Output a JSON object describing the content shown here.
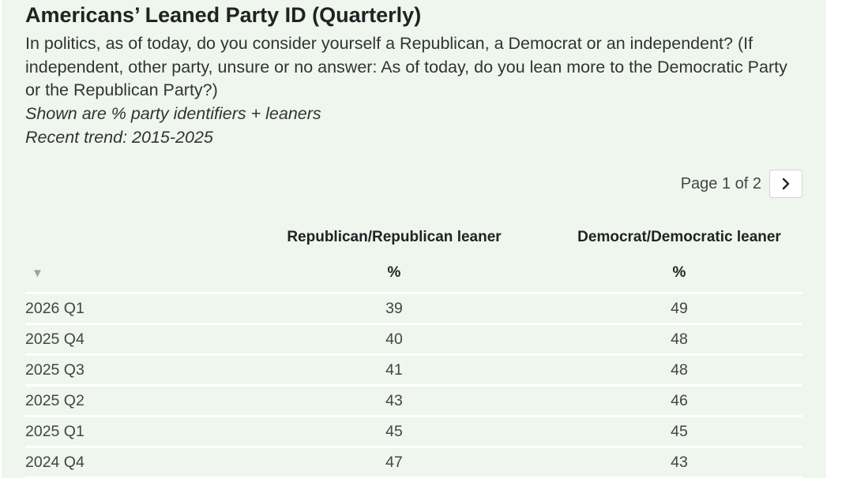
{
  "header": {
    "title": "Americans’ Leaned Party ID (Quarterly)",
    "question": "In politics, as of today, do you consider yourself a Republican, a Democrat or an independent? (If independent, other party, unsure or no answer: As of today, do you lean more to the Democratic Party or the Republican Party?)",
    "note_1": "Shown are % party identifiers + leaners",
    "note_2": "Recent trend: 2015-2025"
  },
  "pager": {
    "text": "Page 1 of 2",
    "next_icon": "chevron-right-icon"
  },
  "table": {
    "sort_icon": "▼",
    "columns": [
      {
        "label": "Republican/Republican leaner",
        "unit": "%"
      },
      {
        "label": "Democrat/Democratic leaner",
        "unit": "%"
      }
    ],
    "rows": [
      {
        "period": "2026 Q1",
        "republican": "39",
        "democrat": "49"
      },
      {
        "period": "2025 Q4",
        "republican": "40",
        "democrat": "48"
      },
      {
        "period": "2025 Q3",
        "republican": "41",
        "democrat": "48"
      },
      {
        "period": "2025 Q2",
        "republican": "43",
        "democrat": "46"
      },
      {
        "period": "2025 Q1",
        "republican": "45",
        "democrat": "45"
      },
      {
        "period": "2024 Q4",
        "republican": "47",
        "democrat": "43"
      }
    ]
  },
  "colors": {
    "panel_background": "#eef6ee",
    "row_divider": "#ffffff",
    "text": "#333333"
  }
}
